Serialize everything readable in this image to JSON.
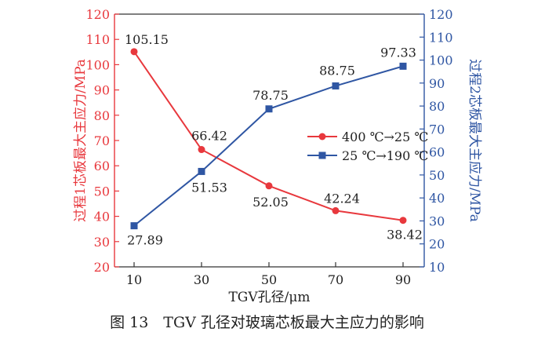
{
  "chart_data": {
    "type": "line",
    "x": [
      10,
      30,
      50,
      70,
      90
    ],
    "xlabel": "TGV孔径/μm",
    "ylabel_left": "过程1芯板最大主应力/MPa",
    "ylabel_right": "过程2芯板最大主应力/MPa",
    "ylim_left": [
      20,
      120
    ],
    "ylim_right": [
      10,
      120
    ],
    "yticks_left": [
      20,
      30,
      40,
      50,
      60,
      70,
      80,
      90,
      100,
      110,
      120
    ],
    "yticks_right": [
      10,
      20,
      30,
      40,
      50,
      60,
      70,
      80,
      90,
      100,
      110,
      120
    ],
    "series": [
      {
        "name": "400 ℃→25 ℃",
        "axis": "left",
        "color": "#e8383d",
        "marker": "circle",
        "values": [
          105.15,
          66.42,
          52.05,
          42.24,
          38.42
        ],
        "labels": [
          "105.15",
          "66.42",
          "52.05",
          "42.24",
          "38.42"
        ]
      },
      {
        "name": "25 ℃→190 ℃",
        "axis": "right",
        "color": "#2f56a3",
        "marker": "square",
        "values": [
          27.89,
          51.53,
          78.75,
          88.75,
          97.33
        ],
        "labels": [
          "27.89",
          "51.53",
          "78.75",
          "88.75",
          "97.33"
        ]
      }
    ]
  },
  "caption": "图 13　TGV 孔径对玻璃芯板最大主应力的影响",
  "colors": {
    "left_axis": "#e8383d",
    "right_axis": "#2f56a3",
    "frame": "#333333"
  }
}
